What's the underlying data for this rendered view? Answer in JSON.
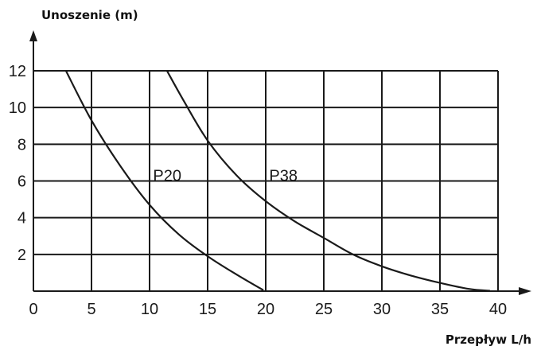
{
  "chart_data": {
    "type": "line",
    "title": "",
    "ylabel": "Unoszenie (m)",
    "xlabel": "Przepływ L/h",
    "xlim": [
      0,
      40
    ],
    "ylim": [
      0,
      13
    ],
    "x_ticks": [
      0,
      5,
      10,
      15,
      20,
      25,
      30,
      35,
      40
    ],
    "y_ticks": [
      2,
      4,
      6,
      8,
      10,
      12
    ],
    "grid": true,
    "legend": "none",
    "colors": {
      "line": "#1a1a1a",
      "grid": "#1a1a1a"
    },
    "series": [
      {
        "name": "P20",
        "label_at": [
          10.3,
          6.3
        ],
        "points": [
          [
            2.8,
            12
          ],
          [
            5,
            9.3
          ],
          [
            7.5,
            6.8
          ],
          [
            10,
            4.7
          ],
          [
            12.5,
            3.1
          ],
          [
            15,
            1.9
          ],
          [
            17.5,
            0.9
          ],
          [
            19.8,
            0.05
          ]
        ]
      },
      {
        "name": "P38",
        "label_at": [
          20.3,
          6.3
        ],
        "points": [
          [
            11.5,
            12
          ],
          [
            13,
            10.3
          ],
          [
            15,
            8.2
          ],
          [
            17.5,
            6.3
          ],
          [
            20,
            4.9
          ],
          [
            22.5,
            3.8
          ],
          [
            25,
            2.9
          ],
          [
            27.5,
            2.0
          ],
          [
            30,
            1.35
          ],
          [
            32.5,
            0.85
          ],
          [
            35,
            0.45
          ],
          [
            37.5,
            0.12
          ],
          [
            39.3,
            0.02
          ]
        ]
      }
    ]
  }
}
